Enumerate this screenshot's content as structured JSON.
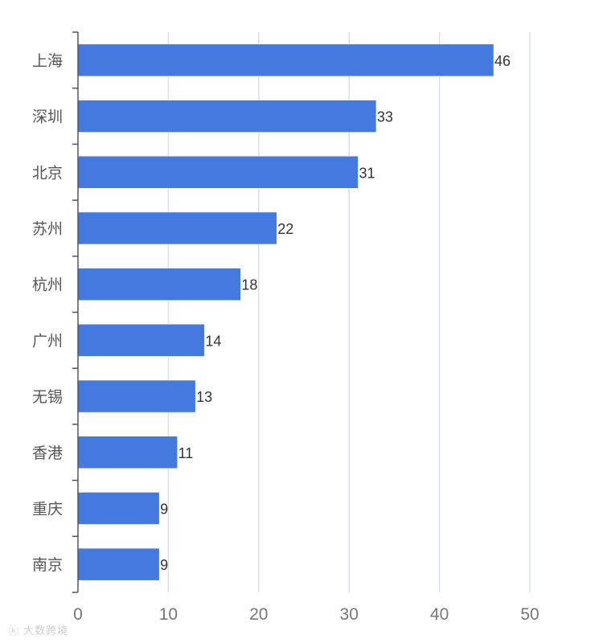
{
  "chart_data": {
    "type": "bar",
    "orientation": "horizontal",
    "categories": [
      "上海",
      "深圳",
      "北京",
      "苏州",
      "杭州",
      "广州",
      "无锡",
      "香港",
      "重庆",
      "南京"
    ],
    "values": [
      46,
      33,
      31,
      22,
      18,
      14,
      13,
      11,
      9,
      9
    ],
    "title": "",
    "xlabel": "",
    "ylabel": "",
    "xlim": [
      0,
      50
    ],
    "xticks": [
      0,
      10,
      20,
      30,
      40,
      50
    ],
    "grid": true,
    "bar_color": "#4479e0",
    "data_labels": true
  },
  "watermark": {
    "text": "大数跨境"
  }
}
